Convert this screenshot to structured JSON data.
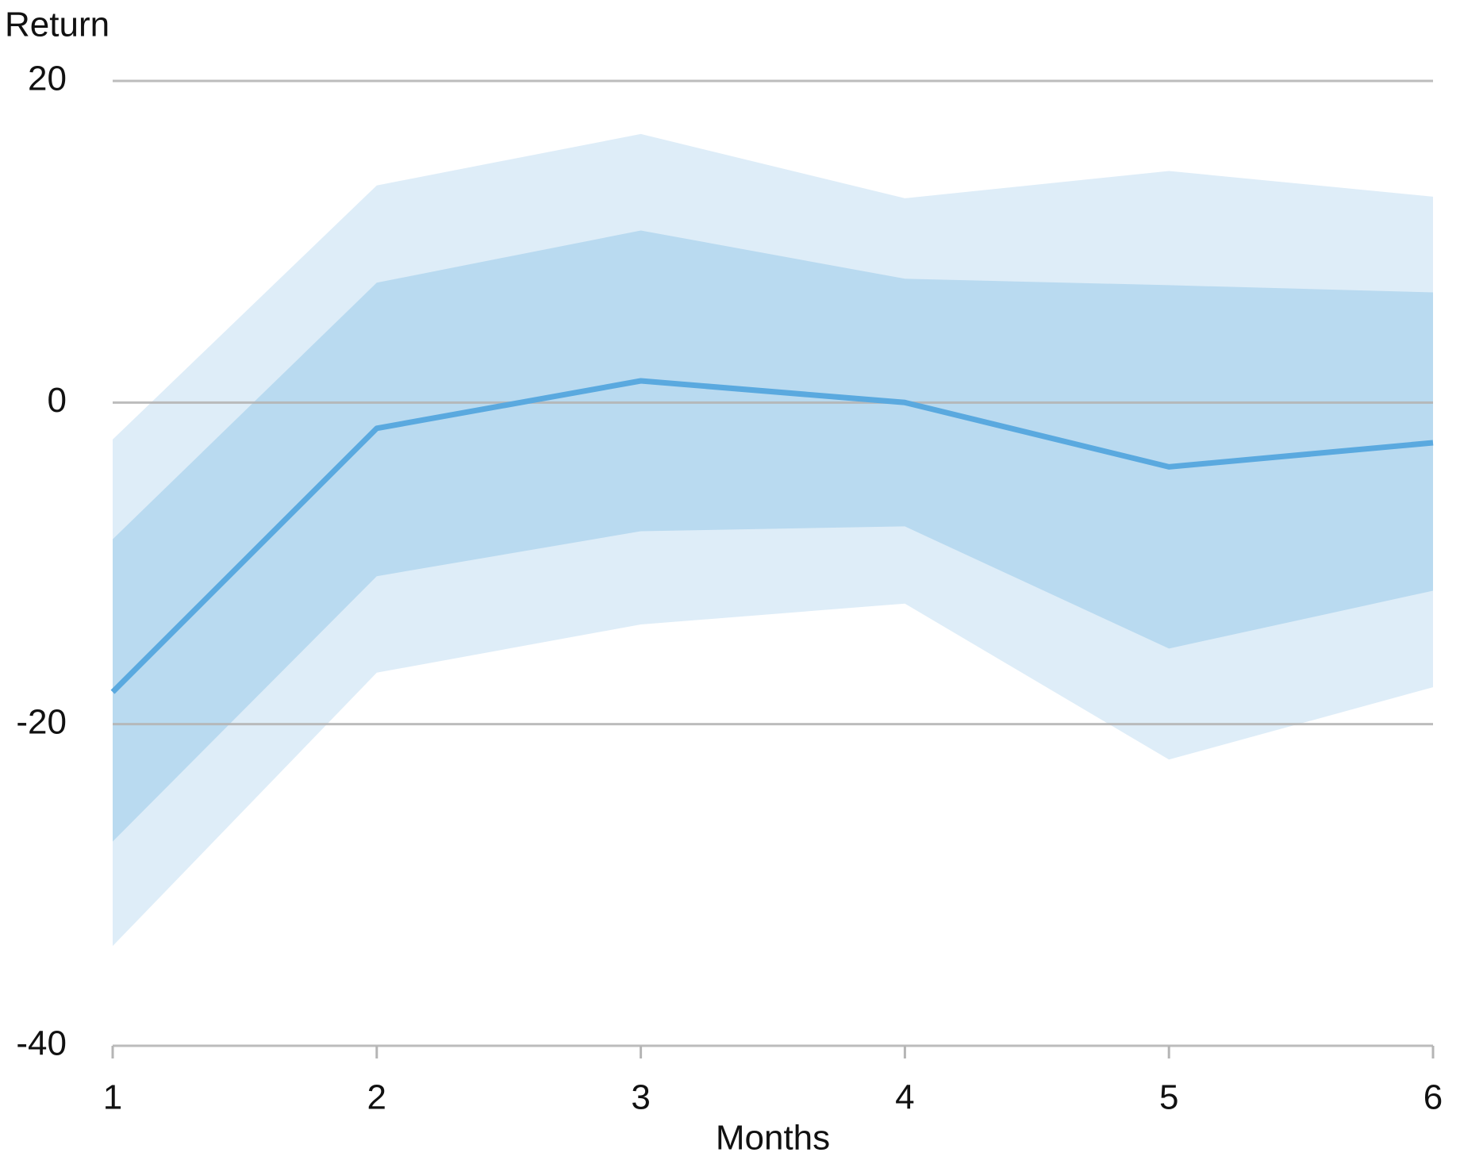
{
  "chart_data": {
    "type": "line",
    "y_label": "Return",
    "x_label": "Months",
    "x": [
      1,
      2,
      3,
      4,
      5,
      6
    ],
    "xlim": [
      1,
      6
    ],
    "xticks": [
      1,
      2,
      3,
      4,
      5,
      6
    ],
    "ylim": [
      -40,
      20
    ],
    "yticks": [
      -40,
      -20,
      0,
      20
    ],
    "grid": true,
    "bands": [
      {
        "color": "#deedf8",
        "lower": [
          -33.8,
          -16.8,
          -13.8,
          -12.5,
          -22.2,
          -17.7
        ],
        "upper": [
          -2.3,
          13.5,
          16.7,
          12.7,
          14.4,
          12.8
        ]
      },
      {
        "color": "#b9daf0",
        "lower": [
          -27.3,
          -10.8,
          -8.0,
          -7.7,
          -15.3,
          -11.7
        ],
        "upper": [
          -8.5,
          7.45,
          10.7,
          7.7,
          7.3,
          6.85
        ]
      }
    ],
    "series": [
      {
        "color": "#5aa9df",
        "values": [
          -18.0,
          -1.6,
          1.35,
          0,
          -4.0,
          -2.5
        ]
      }
    ]
  }
}
